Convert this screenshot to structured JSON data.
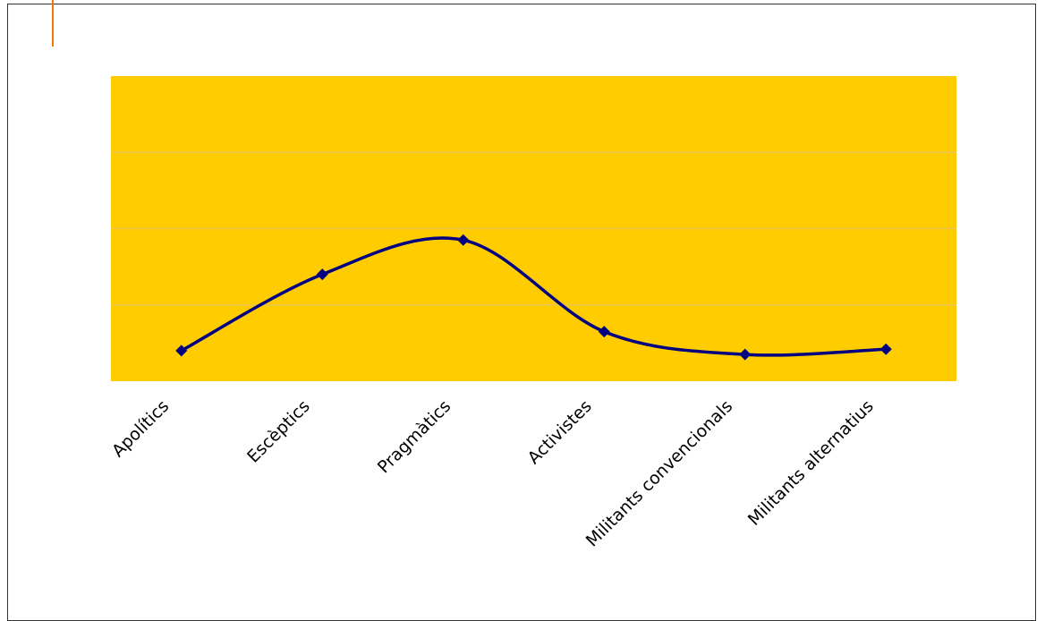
{
  "colors": {
    "plot_background": "#ffcc00",
    "gridline": "#e9c44d",
    "series_line": "#000080",
    "accent_line": "#f07800",
    "frame_border": "#333333"
  },
  "chart_data": {
    "type": "line",
    "title": "",
    "xlabel": "",
    "ylabel": "",
    "categories": [
      "Apolítics",
      "Escèptics",
      "Pragmàtics",
      "Activistes",
      "Militants convencionals",
      "Militants alternatius"
    ],
    "series": [
      {
        "values": [
          0.4,
          1.4,
          1.85,
          0.65,
          0.35,
          0.42
        ]
      }
    ],
    "ylim": [
      0,
      4
    ],
    "y_gridlines": [
      1,
      2,
      3
    ],
    "y_tick_labels_visible": false,
    "smoothed": true,
    "marker": "diamond",
    "grid": true,
    "legend": "none"
  }
}
